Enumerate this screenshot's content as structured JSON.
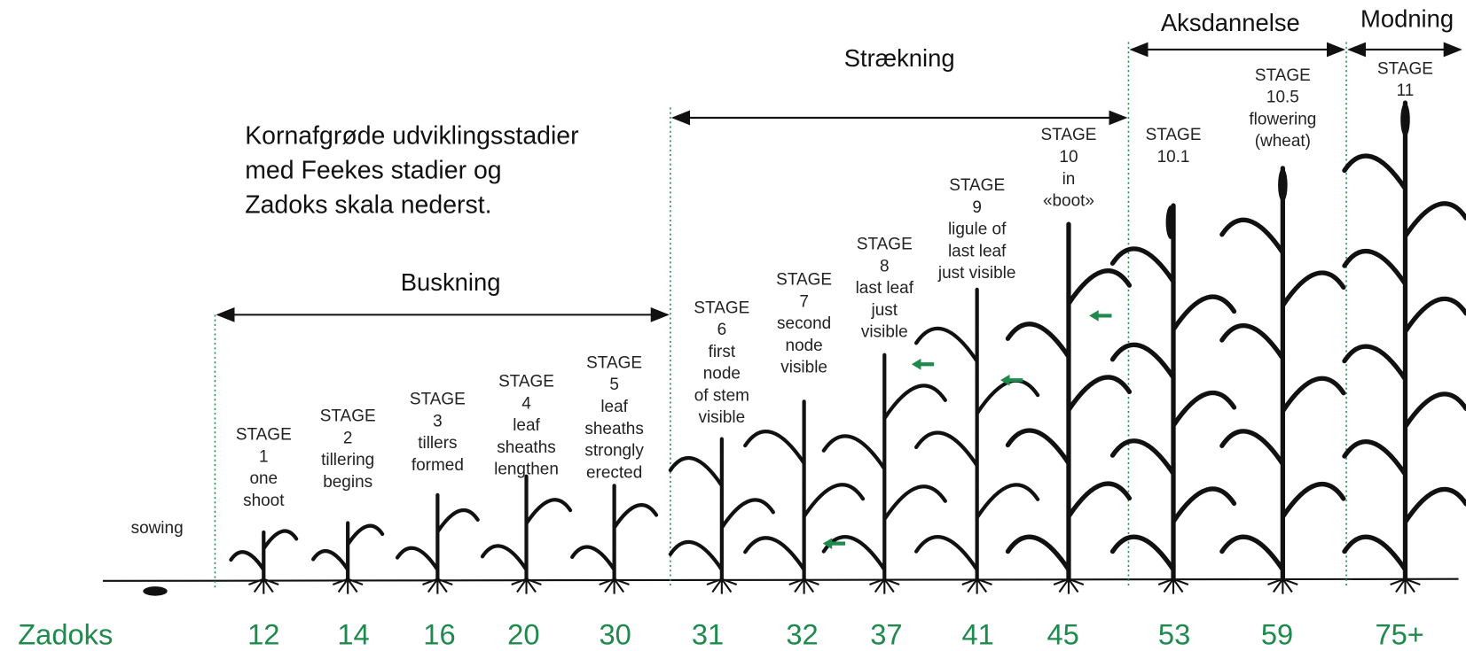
{
  "note": [
    "Kornafgrøde udviklingsstadier",
    "med Feekes stadier og",
    "Zadoks skala nederst."
  ],
  "phases": [
    "Buskning",
    "Strækning",
    "Aksdannelse",
    "Modning"
  ],
  "stages": [
    {
      "lines": [
        "sowing"
      ]
    },
    {
      "lines": [
        "STAGE",
        "1",
        "one",
        "shoot"
      ]
    },
    {
      "lines": [
        "STAGE",
        "2",
        "tillering",
        "begins"
      ]
    },
    {
      "lines": [
        "STAGE",
        "3",
        "tillers",
        "formed"
      ]
    },
    {
      "lines": [
        "STAGE",
        "4",
        "leaf",
        "sheaths",
        "lengthen"
      ]
    },
    {
      "lines": [
        "STAGE",
        "5",
        "leaf",
        "sheaths",
        "strongly",
        "erected"
      ]
    },
    {
      "lines": [
        "STAGE",
        "6",
        "first",
        "node",
        "of stem",
        "visible"
      ]
    },
    {
      "lines": [
        "STAGE",
        "7",
        "second",
        "node",
        "visible"
      ]
    },
    {
      "lines": [
        "STAGE",
        "8",
        "last leaf",
        "just",
        "visible"
      ]
    },
    {
      "lines": [
        "STAGE",
        "9",
        "ligule of",
        "last leaf",
        "just visible"
      ]
    },
    {
      "lines": [
        "STAGE",
        "10",
        "in",
        "«boot»"
      ]
    },
    {
      "lines": [
        "STAGE",
        "10.1"
      ]
    },
    {
      "lines": [
        "STAGE",
        "10.5",
        "flowering",
        "(wheat)"
      ]
    },
    {
      "lines": [
        "STAGE",
        "11"
      ]
    }
  ],
  "zadoks": {
    "label": "Zadoks",
    "values": [
      12,
      14,
      16,
      20,
      30,
      31,
      32,
      37,
      41,
      45,
      53,
      59,
      "75+"
    ]
  }
}
